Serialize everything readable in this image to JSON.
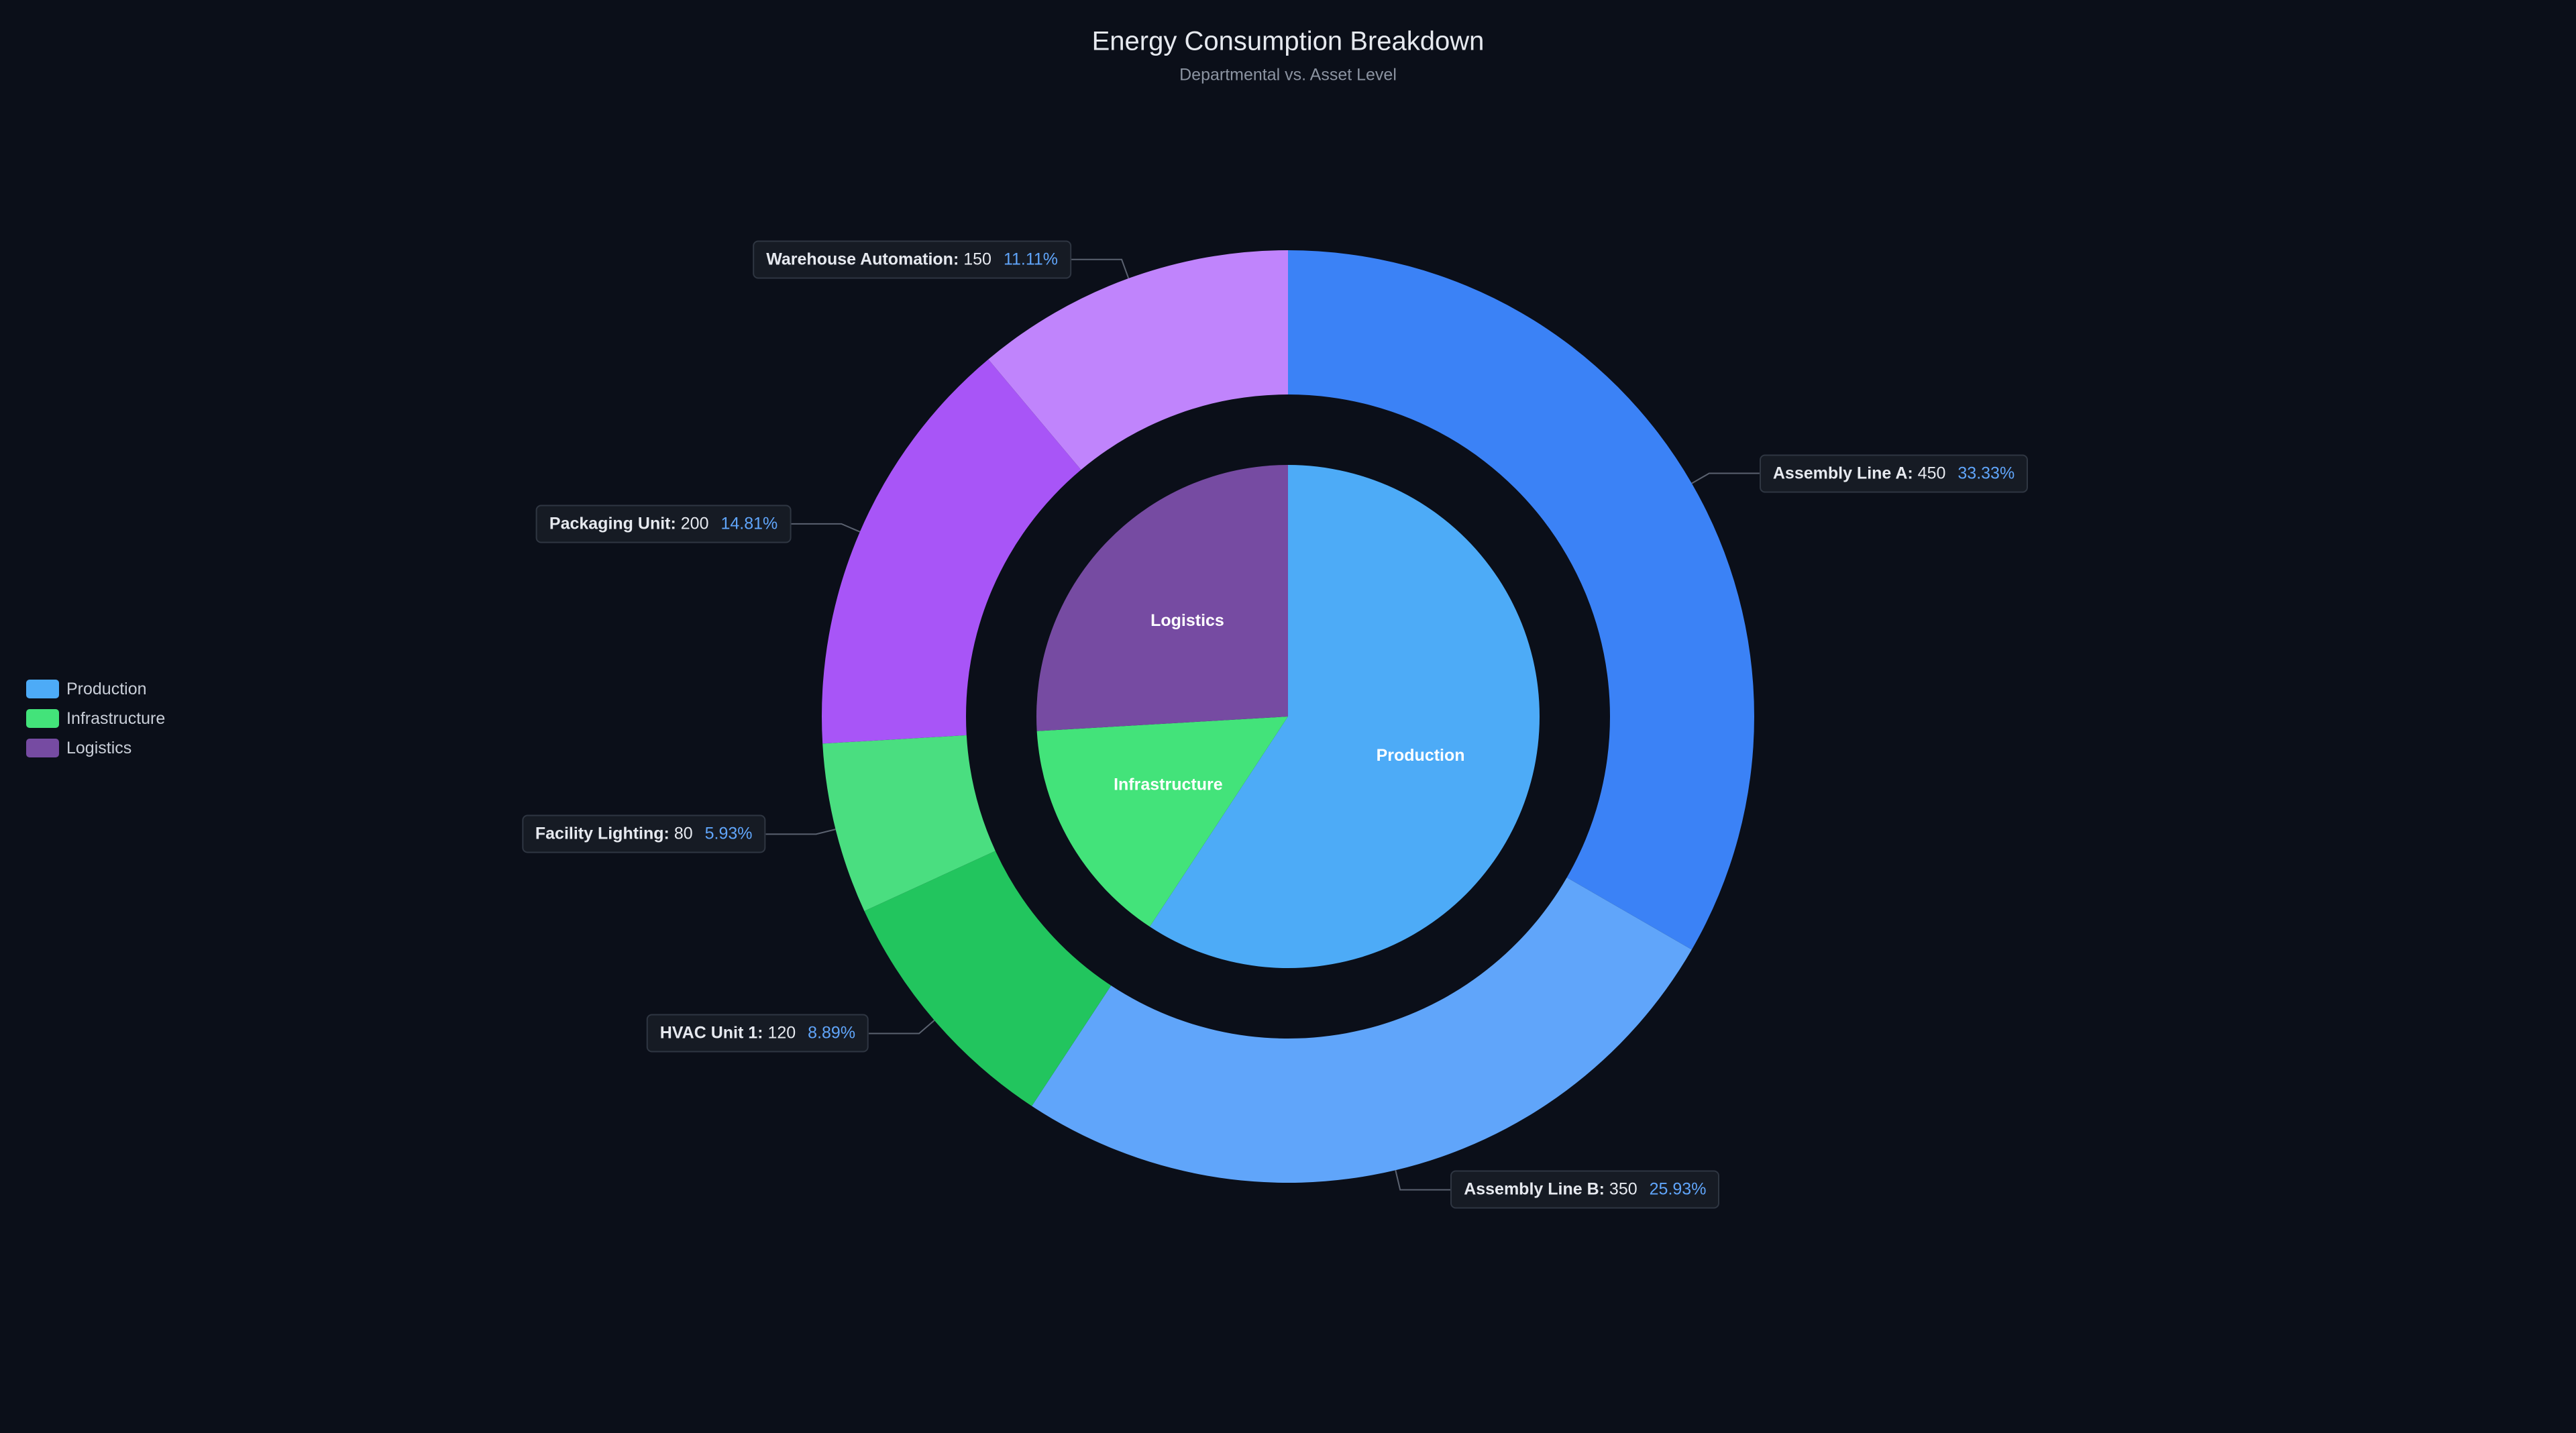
{
  "chart_data": {
    "type": "pie",
    "title": "Energy Consumption Breakdown",
    "subtitle": "Departmental vs. Asset Level",
    "legend": "left",
    "inner": {
      "categories": [
        "Production",
        "Infrastructure",
        "Logistics"
      ],
      "values": [
        800,
        200,
        350
      ],
      "colors": [
        "#4dabf7",
        "#43e37a",
        "#764ba2"
      ]
    },
    "outer": {
      "categories": [
        "Assembly Line A",
        "Assembly Line B",
        "HVAC Unit 1",
        "Facility Lighting",
        "Packaging Unit",
        "Warehouse Automation"
      ],
      "values": [
        450,
        350,
        120,
        80,
        200,
        150
      ],
      "percent_labels": [
        "33.33%",
        "25.93%",
        "8.89%",
        "5.93%",
        "14.81%",
        "11.11%"
      ],
      "colors": [
        "#3b82f6",
        "#60a5fa",
        "#22c55e",
        "#4ade80",
        "#a855f7",
        "#c084fc"
      ]
    }
  }
}
